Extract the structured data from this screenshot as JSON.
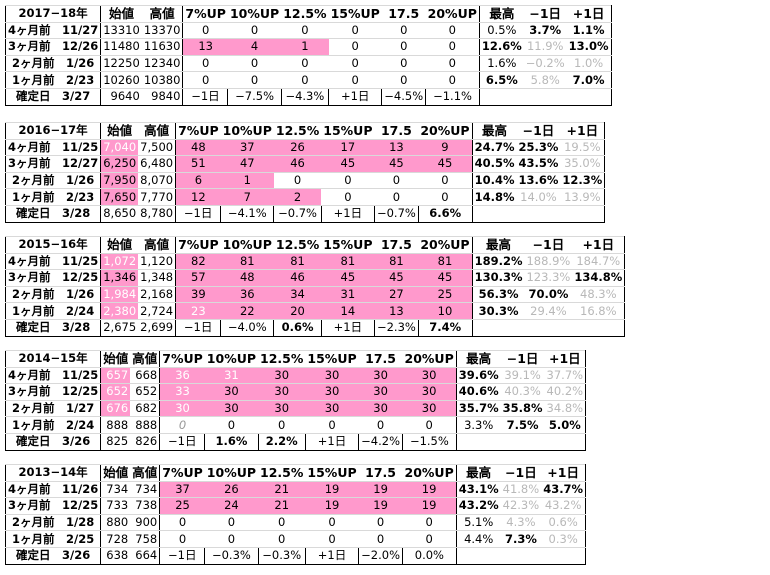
{
  "columns": {
    "open": "始値",
    "high": "高値",
    "up7": "7%UP",
    "up10": "10%UP",
    "up125": "12.5%",
    "up15": "15%UP",
    "up175": "17.5",
    "up20": "20%UP",
    "max": "最高",
    "minus1": "−1日",
    "plus1": "+1日"
  },
  "colors": {
    "highlight": "#ff99cc",
    "muted": "#b8b8b8",
    "grid": "#d9d9d9"
  },
  "blocks": [
    {
      "year": "2017−18年",
      "rows": [
        {
          "label": "4ヶ月前　11/27",
          "open": "13310",
          "high": "13370",
          "up7": "0",
          "up10": "0",
          "up125": "0",
          "up15": "0",
          "up175": "0",
          "up20": "0",
          "max": "0.5%",
          "minus1": "3.7%",
          "plus1": "1.1%"
        },
        {
          "label": "3ヶ月前　12/26",
          "open": "11480",
          "high": "11630",
          "up7": "13",
          "up10": "4",
          "up125": "1",
          "up15": "0",
          "up175": "0",
          "up20": "0",
          "max": "12.6%",
          "minus1": "11.9%",
          "plus1": "13.0%"
        },
        {
          "label": "2ヶ月前　1/26",
          "open": "12250",
          "high": "12340",
          "up7": "0",
          "up10": "0",
          "up125": "0",
          "up15": "0",
          "up175": "0",
          "up20": "0",
          "max": "1.6%",
          "minus1": "−0.2%",
          "plus1": "1.0%"
        },
        {
          "label": "1ヶ月前　2/23",
          "open": "10260",
          "high": "10380",
          "up7": "0",
          "up10": "0",
          "up125": "0",
          "up15": "0",
          "up175": "0",
          "up20": "0",
          "max": "6.5%",
          "minus1": "5.8%",
          "plus1": "7.0%"
        },
        {
          "label": "確定日　3/27",
          "open": "9640",
          "high": "9840",
          "up7": "−1日",
          "up10": "−7.5%",
          "up125": "−4.3%",
          "up15": "+1日",
          "up175": "−4.5%",
          "up20": "−1.1%",
          "max": "",
          "minus1": "",
          "plus1": ""
        }
      ]
    },
    {
      "year": "2016−17年",
      "rows": [
        {
          "label": "4ヶ月前　11/25",
          "open": "7,040",
          "high": "7,500",
          "up7": "48",
          "up10": "37",
          "up125": "26",
          "up15": "17",
          "up175": "13",
          "up20": "9",
          "max": "24.7%",
          "minus1": "25.3%",
          "plus1": "19.5%"
        },
        {
          "label": "3ヶ月前　12/27",
          "open": "6,250",
          "high": "6,480",
          "up7": "51",
          "up10": "47",
          "up125": "46",
          "up15": "45",
          "up175": "45",
          "up20": "45",
          "max": "40.5%",
          "minus1": "43.5%",
          "plus1": "35.0%"
        },
        {
          "label": "2ヶ月前　1/26",
          "open": "7,950",
          "high": "8,070",
          "up7": "6",
          "up10": "1",
          "up125": "0",
          "up15": "0",
          "up175": "0",
          "up20": "0",
          "max": "10.4%",
          "minus1": "13.6%",
          "plus1": "12.3%"
        },
        {
          "label": "1ヶ月前　2/23",
          "open": "7,650",
          "high": "7,770",
          "up7": "12",
          "up10": "7",
          "up125": "2",
          "up15": "0",
          "up175": "0",
          "up20": "0",
          "max": "14.8%",
          "minus1": "14.0%",
          "plus1": "13.9%"
        },
        {
          "label": "確定日　3/28",
          "open": "8,650",
          "high": "8,780",
          "up7": "−1日",
          "up10": "−4.1%",
          "up125": "−0.7%",
          "up15": "+1日",
          "up175": "−0.7%",
          "up20": "6.6%",
          "max": "",
          "minus1": "",
          "plus1": ""
        }
      ]
    },
    {
      "year": "2015−16年",
      "rows": [
        {
          "label": "4ヶ月前　11/25",
          "open": "1,072",
          "high": "1,120",
          "up7": "82",
          "up10": "81",
          "up125": "81",
          "up15": "81",
          "up175": "81",
          "up20": "81",
          "max": "189.2%",
          "minus1": "188.9%",
          "plus1": "184.7%"
        },
        {
          "label": "3ヶ月前　12/25",
          "open": "1,346",
          "high": "1,348",
          "up7": "57",
          "up10": "48",
          "up125": "46",
          "up15": "45",
          "up175": "45",
          "up20": "45",
          "max": "130.3%",
          "minus1": "123.3%",
          "plus1": "134.8%"
        },
        {
          "label": "2ヶ月前　1/26",
          "open": "1,984",
          "high": "2,168",
          "up7": "39",
          "up10": "36",
          "up125": "34",
          "up15": "31",
          "up175": "27",
          "up20": "25",
          "max": "56.3%",
          "minus1": "70.0%",
          "plus1": "48.3%"
        },
        {
          "label": "1ヶ月前　2/24",
          "open": "2,380",
          "high": "2,724",
          "up7": "23",
          "up10": "22",
          "up125": "20",
          "up15": "14",
          "up175": "13",
          "up20": "10",
          "max": "30.3%",
          "minus1": "29.4%",
          "plus1": "16.8%"
        },
        {
          "label": "確定日　3/28",
          "open": "2,675",
          "high": "2,699",
          "up7": "−1日",
          "up10": "−4.0%",
          "up125": "0.6%",
          "up15": "+1日",
          "up175": "−2.3%",
          "up20": "7.4%",
          "max": "",
          "minus1": "",
          "plus1": ""
        }
      ]
    },
    {
      "year": "2014−15年",
      "rows": [
        {
          "label": "4ヶ月前　11/25",
          "open": "657",
          "high": "668",
          "up7": "36",
          "up10": "31",
          "up125": "30",
          "up15": "30",
          "up175": "30",
          "up20": "30",
          "max": "39.6%",
          "minus1": "39.1%",
          "plus1": "37.7%"
        },
        {
          "label": "3ヶ月前　12/25",
          "open": "652",
          "high": "652",
          "up7": "33",
          "up10": "30",
          "up125": "30",
          "up15": "30",
          "up175": "30",
          "up20": "30",
          "max": "40.6%",
          "minus1": "40.3%",
          "plus1": "40.2%"
        },
        {
          "label": "2ヶ月前　1/27",
          "open": "676",
          "high": "682",
          "up7": "30",
          "up10": "30",
          "up125": "30",
          "up15": "30",
          "up175": "30",
          "up20": "30",
          "max": "35.7%",
          "minus1": "35.8%",
          "plus1": "34.8%"
        },
        {
          "label": "1ヶ月前　2/24",
          "open": "888",
          "high": "888",
          "up7": "0",
          "up10": "0",
          "up125": "0",
          "up15": "0",
          "up175": "0",
          "up20": "0",
          "max": "3.3%",
          "minus1": "7.5%",
          "plus1": "5.0%"
        },
        {
          "label": "確定日　3/26",
          "open": "825",
          "high": "826",
          "up7": "−1日",
          "up10": "1.6%",
          "up125": "2.2%",
          "up15": "+1日",
          "up175": "−4.2%",
          "up20": "−1.5%",
          "max": "",
          "minus1": "",
          "plus1": ""
        }
      ]
    },
    {
      "year": "2013−14年",
      "rows": [
        {
          "label": "4ヶ月前　11/26",
          "open": "734",
          "high": "734",
          "up7": "37",
          "up10": "26",
          "up125": "21",
          "up15": "19",
          "up175": "19",
          "up20": "19",
          "max": "43.1%",
          "minus1": "41.8%",
          "plus1": "43.7%"
        },
        {
          "label": "3ヶ月前　12/25",
          "open": "733",
          "high": "738",
          "up7": "25",
          "up10": "24",
          "up125": "21",
          "up15": "19",
          "up175": "19",
          "up20": "19",
          "max": "43.2%",
          "minus1": "42.3%",
          "plus1": "43.2%"
        },
        {
          "label": "2ヶ月前　1/28",
          "open": "880",
          "high": "900",
          "up7": "0",
          "up10": "0",
          "up125": "0",
          "up15": "0",
          "up175": "0",
          "up20": "0",
          "max": "5.1%",
          "minus1": "4.3%",
          "plus1": "0.6%"
        },
        {
          "label": "1ヶ月前　2/25",
          "open": "728",
          "high": "758",
          "up7": "0",
          "up10": "0",
          "up125": "0",
          "up15": "0",
          "up175": "0",
          "up20": "0",
          "max": "4.4%",
          "minus1": "7.3%",
          "plus1": "0.3%"
        },
        {
          "label": "確定日　3/26",
          "open": "638",
          "high": "664",
          "up7": "−1日",
          "up10": "−0.3%",
          "up125": "−0.3%",
          "up15": "+1日",
          "up175": "−2.0%",
          "up20": "0.0%",
          "max": "",
          "minus1": "",
          "plus1": ""
        }
      ]
    }
  ]
}
